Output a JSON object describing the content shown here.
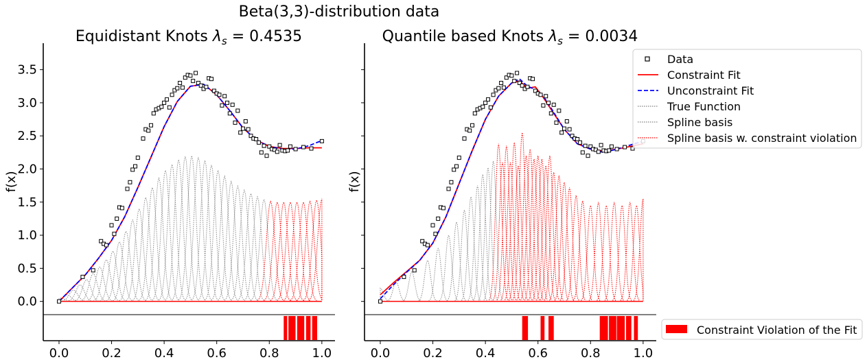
{
  "figure": {
    "suptitle": "Beta(3,3)-distribution data",
    "legend_items": [
      {
        "label": "Data",
        "marker": "square",
        "color": "#000000"
      },
      {
        "label": "Constraint Fit",
        "line": "solid",
        "color": "#ff0000"
      },
      {
        "label": "Unconstraint Fit",
        "line": "dashed",
        "color": "#0000ff"
      },
      {
        "label": "True Function",
        "line": "dotted",
        "color": "#808080"
      },
      {
        "label": "Spline basis",
        "line": "dotted",
        "color": "#808080"
      },
      {
        "label": "Spline basis w. constraint violation",
        "line": "dotted",
        "color": "#ff0000"
      }
    ],
    "violation_legend": "Constraint Violation of the Fit",
    "colors": {
      "constraint": "#ff0000",
      "unconstraint": "#0000ff",
      "basis": "#8c8c8c",
      "violation": "#ff0000"
    }
  },
  "chart_data": [
    {
      "type": "line",
      "title_prefix": "Equidistant Knots ",
      "title_lambda": "λ",
      "title_sub": "s",
      "title_value": " = 0.4535",
      "ylabel": "f(x)",
      "xlim": [
        -0.06,
        1.05
      ],
      "ylim": [
        -0.2,
        3.9
      ],
      "x_ticks": [
        "0.0",
        "0.2",
        "0.4",
        "0.6",
        "0.8",
        "1.0"
      ],
      "y_ticks": [
        "0.0",
        "0.5",
        "1.0",
        "1.5",
        "2.0",
        "2.5",
        "3.0",
        "3.5"
      ],
      "data_points": {
        "x": [
          0.0,
          0.09,
          0.13,
          0.16,
          0.17,
          0.18,
          0.2,
          0.21,
          0.22,
          0.23,
          0.24,
          0.26,
          0.27,
          0.28,
          0.29,
          0.3,
          0.32,
          0.33,
          0.34,
          0.35,
          0.36,
          0.37,
          0.38,
          0.39,
          0.4,
          0.41,
          0.42,
          0.43,
          0.44,
          0.45,
          0.46,
          0.47,
          0.48,
          0.49,
          0.5,
          0.51,
          0.52,
          0.53,
          0.54,
          0.55,
          0.56,
          0.57,
          0.58,
          0.59,
          0.6,
          0.61,
          0.62,
          0.63,
          0.64,
          0.65,
          0.66,
          0.67,
          0.68,
          0.69,
          0.7,
          0.71,
          0.72,
          0.73,
          0.74,
          0.75,
          0.76,
          0.77,
          0.78,
          0.79,
          0.8,
          0.81,
          0.82,
          0.83,
          0.84,
          0.85,
          0.86,
          0.87,
          0.88,
          0.9,
          0.93,
          0.96,
          1.0
        ],
        "y": [
          0.0,
          0.37,
          0.47,
          0.91,
          0.87,
          0.85,
          1.15,
          1.02,
          1.25,
          1.42,
          1.41,
          1.7,
          1.8,
          1.99,
          2.04,
          2.17,
          2.46,
          2.6,
          2.58,
          2.66,
          2.84,
          2.9,
          2.92,
          2.94,
          3.0,
          3.05,
          2.93,
          3.12,
          3.19,
          3.22,
          3.3,
          3.23,
          3.38,
          3.42,
          3.41,
          3.33,
          3.45,
          3.3,
          3.26,
          3.21,
          3.24,
          3.37,
          3.36,
          3.18,
          3.14,
          3.12,
          2.96,
          3.1,
          3.0,
          2.84,
          2.97,
          2.7,
          2.88,
          2.55,
          2.61,
          2.72,
          2.6,
          2.5,
          2.46,
          2.45,
          2.4,
          2.25,
          2.35,
          2.2,
          2.34,
          2.3,
          2.29,
          2.26,
          2.36,
          2.28,
          2.27,
          2.28,
          2.34,
          2.3,
          2.33,
          2.31,
          2.42
        ]
      },
      "constraint_fit": {
        "x": [
          0.0,
          0.05,
          0.1,
          0.15,
          0.2,
          0.25,
          0.3,
          0.35,
          0.4,
          0.45,
          0.5,
          0.55,
          0.6,
          0.65,
          0.7,
          0.75,
          0.8,
          0.85,
          0.9,
          0.95,
          1.0
        ],
        "y": [
          0.0,
          0.2,
          0.4,
          0.65,
          0.92,
          1.28,
          1.72,
          2.18,
          2.64,
          3.02,
          3.25,
          3.28,
          3.12,
          2.88,
          2.62,
          2.44,
          2.34,
          2.31,
          2.31,
          2.32,
          2.32
        ]
      },
      "unconstraint_fit": {
        "x": [
          0.0,
          0.05,
          0.1,
          0.15,
          0.2,
          0.25,
          0.3,
          0.35,
          0.4,
          0.45,
          0.5,
          0.55,
          0.6,
          0.65,
          0.7,
          0.75,
          0.8,
          0.85,
          0.9,
          0.95,
          1.0
        ],
        "y": [
          0.0,
          0.2,
          0.4,
          0.65,
          0.92,
          1.28,
          1.72,
          2.18,
          2.64,
          3.02,
          3.25,
          3.28,
          3.12,
          2.88,
          2.62,
          2.44,
          2.34,
          2.3,
          2.3,
          2.35,
          2.43
        ]
      },
      "basis_centers": [
        0.005,
        0.03,
        0.055,
        0.08,
        0.105,
        0.13,
        0.155,
        0.18,
        0.205,
        0.23,
        0.255,
        0.28,
        0.305,
        0.33,
        0.355,
        0.38,
        0.405,
        0.43,
        0.455,
        0.48,
        0.505,
        0.53,
        0.555,
        0.58,
        0.605,
        0.63,
        0.655,
        0.68,
        0.705,
        0.73,
        0.755,
        0.78,
        0.805,
        0.83,
        0.855,
        0.88,
        0.905,
        0.93,
        0.955,
        0.98,
        1.0
      ],
      "basis_heights": [
        0.05,
        0.1,
        0.17,
        0.25,
        0.33,
        0.42,
        0.52,
        0.63,
        0.76,
        0.9,
        1.06,
        1.23,
        1.4,
        1.57,
        1.72,
        1.86,
        1.98,
        2.07,
        2.14,
        2.19,
        2.2,
        2.18,
        2.13,
        2.06,
        1.98,
        1.89,
        1.81,
        1.74,
        1.68,
        1.63,
        1.58,
        1.54,
        1.51,
        1.5,
        1.5,
        1.5,
        1.5,
        1.5,
        1.51,
        1.53,
        1.55
      ],
      "basis_violation_from": 0.8,
      "basis_width": 0.025,
      "violation_intervals": [
        [
          0.855,
          0.868
        ],
        [
          0.873,
          0.9
        ],
        [
          0.906,
          0.933
        ],
        [
          0.94,
          0.957
        ],
        [
          0.963,
          0.982
        ]
      ]
    },
    {
      "type": "line",
      "title_prefix": "Quantile based Knots ",
      "title_lambda": "λ",
      "title_sub": "s",
      "title_value": " = 0.0034",
      "ylabel": "f(x)",
      "xlim": [
        -0.06,
        1.05
      ],
      "ylim": [
        -0.2,
        3.9
      ],
      "x_ticks": [
        "0.0",
        "0.2",
        "0.4",
        "0.6",
        "0.8",
        "1.0"
      ],
      "data_points": {
        "x": [
          0.0,
          0.09,
          0.13,
          0.16,
          0.17,
          0.18,
          0.2,
          0.21,
          0.22,
          0.23,
          0.24,
          0.26,
          0.27,
          0.28,
          0.29,
          0.3,
          0.32,
          0.33,
          0.34,
          0.35,
          0.36,
          0.37,
          0.38,
          0.39,
          0.4,
          0.41,
          0.42,
          0.43,
          0.44,
          0.45,
          0.46,
          0.47,
          0.48,
          0.49,
          0.5,
          0.51,
          0.52,
          0.53,
          0.54,
          0.55,
          0.56,
          0.57,
          0.58,
          0.59,
          0.6,
          0.61,
          0.62,
          0.63,
          0.64,
          0.65,
          0.66,
          0.67,
          0.68,
          0.69,
          0.7,
          0.71,
          0.72,
          0.73,
          0.74,
          0.75,
          0.76,
          0.77,
          0.78,
          0.79,
          0.8,
          0.81,
          0.82,
          0.83,
          0.84,
          0.85,
          0.86,
          0.87,
          0.88,
          0.9,
          0.93,
          0.96,
          1.0
        ],
        "y": [
          0.0,
          0.37,
          0.47,
          0.91,
          0.87,
          0.85,
          1.15,
          1.02,
          1.25,
          1.42,
          1.41,
          1.7,
          1.8,
          1.99,
          2.04,
          2.17,
          2.46,
          2.6,
          2.58,
          2.66,
          2.84,
          2.9,
          2.92,
          2.94,
          3.0,
          3.05,
          2.93,
          3.12,
          3.19,
          3.22,
          3.3,
          3.23,
          3.38,
          3.42,
          3.41,
          3.33,
          3.45,
          3.3,
          3.26,
          3.21,
          3.24,
          3.37,
          3.36,
          3.18,
          3.14,
          3.12,
          2.96,
          3.1,
          3.0,
          2.84,
          2.97,
          2.7,
          2.88,
          2.55,
          2.61,
          2.72,
          2.6,
          2.5,
          2.46,
          2.45,
          2.4,
          2.25,
          2.35,
          2.2,
          2.34,
          2.3,
          2.29,
          2.26,
          2.36,
          2.28,
          2.27,
          2.28,
          2.34,
          2.3,
          2.33,
          2.31,
          2.42
        ]
      },
      "constraint_fit": {
        "x": [
          0.0,
          0.05,
          0.1,
          0.15,
          0.2,
          0.25,
          0.3,
          0.35,
          0.4,
          0.45,
          0.5,
          0.53,
          0.56,
          0.59,
          0.62,
          0.65,
          0.7,
          0.75,
          0.8,
          0.85,
          0.9,
          0.95,
          1.0
        ],
        "y": [
          0.1,
          0.28,
          0.45,
          0.62,
          0.88,
          1.28,
          1.78,
          2.28,
          2.75,
          3.1,
          3.3,
          3.33,
          3.22,
          3.24,
          3.08,
          2.9,
          2.6,
          2.38,
          2.3,
          2.27,
          2.3,
          2.34,
          2.38
        ]
      },
      "unconstraint_fit": {
        "x": [
          0.0,
          0.05,
          0.1,
          0.15,
          0.2,
          0.25,
          0.3,
          0.35,
          0.4,
          0.45,
          0.5,
          0.53,
          0.56,
          0.59,
          0.62,
          0.65,
          0.7,
          0.75,
          0.8,
          0.85,
          0.9,
          0.95,
          1.0
        ],
        "y": [
          0.04,
          0.25,
          0.44,
          0.62,
          0.88,
          1.28,
          1.78,
          2.28,
          2.75,
          3.1,
          3.3,
          3.36,
          3.25,
          3.2,
          3.1,
          2.92,
          2.6,
          2.38,
          2.3,
          2.25,
          2.3,
          2.36,
          2.42
        ]
      },
      "basis_centers": [
        0.0,
        0.06,
        0.12,
        0.18,
        0.22,
        0.26,
        0.29,
        0.32,
        0.345,
        0.37,
        0.39,
        0.41,
        0.43,
        0.45,
        0.465,
        0.48,
        0.495,
        0.51,
        0.525,
        0.54,
        0.555,
        0.57,
        0.585,
        0.6,
        0.615,
        0.63,
        0.645,
        0.66,
        0.68,
        0.7,
        0.72,
        0.745,
        0.77,
        0.8,
        0.83,
        0.86,
        0.89,
        0.92,
        0.95,
        0.975,
        1.0
      ],
      "basis_heights": [
        0.2,
        0.3,
        0.45,
        0.62,
        0.8,
        1.0,
        1.2,
        1.38,
        1.58,
        1.75,
        1.92,
        2.02,
        2.12,
        2.38,
        2.1,
        2.35,
        2.1,
        2.4,
        2.05,
        2.55,
        2.2,
        2.3,
        2.15,
        2.2,
        2.15,
        2.05,
        2.2,
        1.95,
        1.9,
        1.8,
        1.72,
        1.6,
        1.52,
        1.45,
        1.5,
        1.45,
        1.5,
        1.45,
        1.5,
        1.45,
        1.55
      ],
      "basis_violation_from": 0.44,
      "basis_width": 0.018,
      "violation_intervals": [
        [
          0.54,
          0.562
        ],
        [
          0.61,
          0.625
        ],
        [
          0.64,
          0.66
        ],
        [
          0.835,
          0.866
        ],
        [
          0.87,
          0.898
        ],
        [
          0.9,
          0.93
        ],
        [
          0.935,
          0.955
        ],
        [
          0.965,
          0.98
        ]
      ]
    }
  ]
}
